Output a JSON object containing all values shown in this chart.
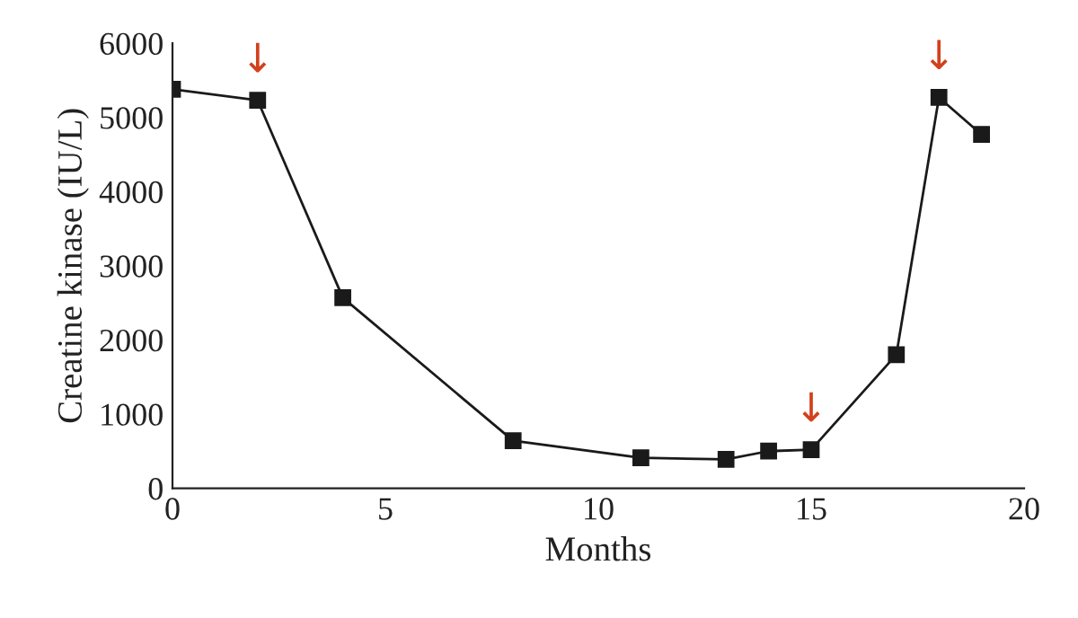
{
  "chart_data": {
    "type": "line",
    "xlabel": "Months",
    "ylabel": "Creatine kinase (IU/L)",
    "x": [
      0,
      2,
      4,
      8,
      11,
      13,
      14,
      15,
      17,
      18,
      19
    ],
    "series": [
      {
        "color": "#1a1a1a",
        "values": [
          5380,
          5230,
          2570,
          640,
          410,
          390,
          500,
          520,
          1800,
          5270,
          4770
        ]
      }
    ],
    "xlim": [
      0,
      20
    ],
    "xticks": [
      0,
      5,
      10,
      15,
      20
    ],
    "ylim": [
      0,
      6000
    ],
    "yticks": [
      0,
      1000,
      2000,
      3000,
      4000,
      5000,
      6000
    ],
    "marker": "square",
    "grid": false,
    "legend": false,
    "annotations": [
      {
        "text": "↓",
        "x": 2,
        "y": 5230
      },
      {
        "text": "↓",
        "x": 15,
        "y": 520
      },
      {
        "text": "↓",
        "x": 18,
        "y": 5270
      }
    ]
  }
}
